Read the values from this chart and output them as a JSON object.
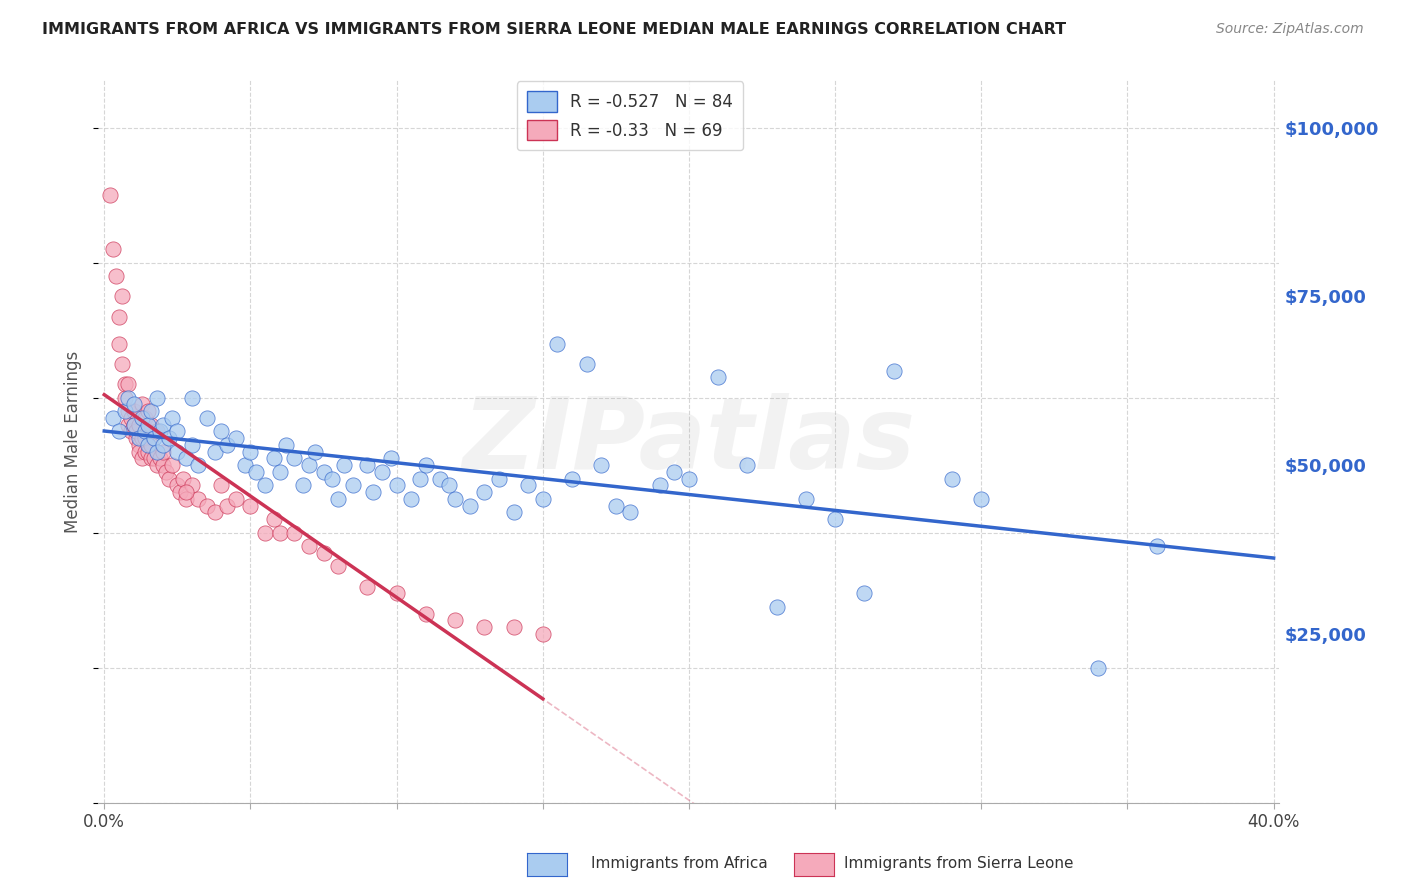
{
  "title": "IMMIGRANTS FROM AFRICA VS IMMIGRANTS FROM SIERRA LEONE MEDIAN MALE EARNINGS CORRELATION CHART",
  "source": "Source: ZipAtlas.com",
  "ylabel": "Median Male Earnings",
  "xlim": [
    -0.002,
    0.402
  ],
  "ylim": [
    0,
    107000
  ],
  "xticks": [
    0.0,
    0.05,
    0.1,
    0.15,
    0.2,
    0.25,
    0.3,
    0.35,
    0.4
  ],
  "xticklabels": [
    "0.0%",
    "",
    "",
    "",
    "",
    "",
    "",
    "",
    "40.0%"
  ],
  "yticks_right": [
    0,
    25000,
    50000,
    75000,
    100000
  ],
  "ytick_labels_right": [
    "",
    "$25,000",
    "$50,000",
    "$75,000",
    "$100,000"
  ],
  "blue_color": "#aaccf0",
  "pink_color": "#f5aabb",
  "blue_line_color": "#3366cc",
  "pink_line_color": "#cc3355",
  "R_blue": -0.527,
  "N_blue": 84,
  "R_pink": -0.33,
  "N_pink": 69,
  "watermark": "ZIPatlas",
  "background_color": "#ffffff",
  "grid_color": "#cccccc",
  "title_color": "#222222",
  "right_axis_color": "#3366cc",
  "blue_scatter": {
    "x": [
      0.003,
      0.005,
      0.007,
      0.008,
      0.01,
      0.01,
      0.012,
      0.013,
      0.014,
      0.015,
      0.015,
      0.016,
      0.017,
      0.018,
      0.018,
      0.019,
      0.02,
      0.02,
      0.022,
      0.023,
      0.025,
      0.025,
      0.028,
      0.03,
      0.03,
      0.032,
      0.035,
      0.038,
      0.04,
      0.042,
      0.045,
      0.048,
      0.05,
      0.052,
      0.055,
      0.058,
      0.06,
      0.062,
      0.065,
      0.068,
      0.07,
      0.072,
      0.075,
      0.078,
      0.08,
      0.082,
      0.085,
      0.09,
      0.092,
      0.095,
      0.098,
      0.1,
      0.105,
      0.108,
      0.11,
      0.115,
      0.118,
      0.12,
      0.125,
      0.13,
      0.135,
      0.14,
      0.145,
      0.15,
      0.155,
      0.16,
      0.165,
      0.17,
      0.175,
      0.18,
      0.19,
      0.195,
      0.2,
      0.21,
      0.22,
      0.23,
      0.24,
      0.25,
      0.26,
      0.27,
      0.29,
      0.3,
      0.34,
      0.36
    ],
    "y": [
      57000,
      55000,
      58000,
      60000,
      56000,
      59000,
      54000,
      57000,
      55000,
      56000,
      53000,
      58000,
      54000,
      52000,
      60000,
      55000,
      56000,
      53000,
      54000,
      57000,
      55000,
      52000,
      51000,
      53000,
      60000,
      50000,
      57000,
      52000,
      55000,
      53000,
      54000,
      50000,
      52000,
      49000,
      47000,
      51000,
      49000,
      53000,
      51000,
      47000,
      50000,
      52000,
      49000,
      48000,
      45000,
      50000,
      47000,
      50000,
      46000,
      49000,
      51000,
      47000,
      45000,
      48000,
      50000,
      48000,
      47000,
      45000,
      44000,
      46000,
      48000,
      43000,
      47000,
      45000,
      68000,
      48000,
      65000,
      50000,
      44000,
      43000,
      47000,
      49000,
      48000,
      63000,
      50000,
      29000,
      45000,
      42000,
      31000,
      64000,
      48000,
      45000,
      20000,
      38000
    ]
  },
  "pink_scatter": {
    "x": [
      0.002,
      0.003,
      0.004,
      0.005,
      0.005,
      0.006,
      0.006,
      0.007,
      0.007,
      0.008,
      0.008,
      0.008,
      0.009,
      0.009,
      0.01,
      0.01,
      0.011,
      0.011,
      0.012,
      0.012,
      0.012,
      0.013,
      0.013,
      0.013,
      0.014,
      0.014,
      0.014,
      0.015,
      0.015,
      0.015,
      0.016,
      0.016,
      0.016,
      0.017,
      0.018,
      0.018,
      0.019,
      0.02,
      0.02,
      0.021,
      0.022,
      0.023,
      0.025,
      0.026,
      0.027,
      0.028,
      0.03,
      0.032,
      0.035,
      0.038,
      0.04,
      0.042,
      0.045,
      0.05,
      0.055,
      0.058,
      0.06,
      0.065,
      0.07,
      0.075,
      0.08,
      0.09,
      0.1,
      0.11,
      0.12,
      0.13,
      0.14,
      0.15,
      0.028
    ],
    "y": [
      90000,
      82000,
      78000,
      72000,
      68000,
      65000,
      75000,
      62000,
      60000,
      58000,
      56000,
      62000,
      57000,
      55000,
      56000,
      58000,
      54000,
      55000,
      53000,
      56000,
      52000,
      51000,
      54000,
      59000,
      52000,
      54000,
      57000,
      55000,
      52000,
      58000,
      51000,
      53000,
      56000,
      51000,
      50000,
      55000,
      51000,
      50000,
      52000,
      49000,
      48000,
      50000,
      47000,
      46000,
      48000,
      45000,
      47000,
      45000,
      44000,
      43000,
      47000,
      44000,
      45000,
      44000,
      40000,
      42000,
      40000,
      40000,
      38000,
      37000,
      35000,
      32000,
      31000,
      28000,
      27000,
      26000,
      26000,
      25000,
      46000
    ]
  }
}
